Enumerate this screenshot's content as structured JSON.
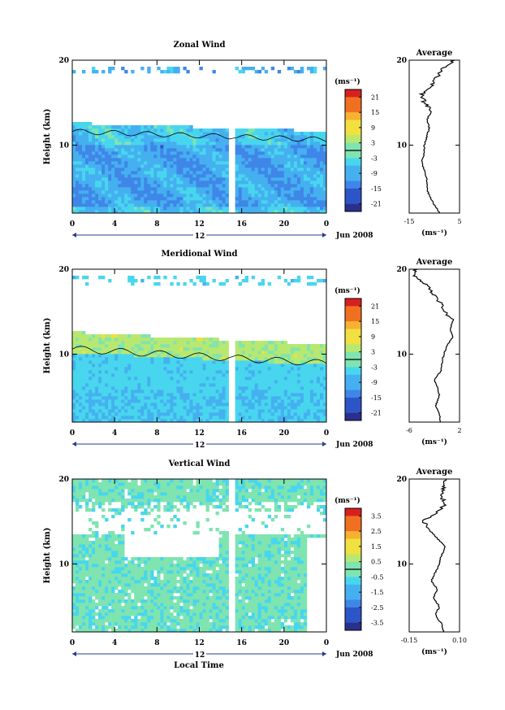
{
  "figure": {
    "xlabel": "Local Time",
    "date_label": "Jun 2008",
    "day_label": "12",
    "ylabel": "Height (km)",
    "average_title": "Average",
    "unit": "(ms⁻¹)"
  },
  "chart_data": [
    {
      "type": "heatmap",
      "title": "Zonal Wind",
      "xlabel": "Local Time",
      "ylabel": "Height (km)",
      "x_ticks": [
        "0",
        "4",
        "8",
        "12",
        "16",
        "20",
        "0"
      ],
      "y_ticks": [
        "10",
        "20"
      ],
      "xlim": [
        0,
        24
      ],
      "ylim": [
        2,
        20
      ],
      "data_gap_hours": [
        14.8,
        15.3
      ],
      "colorbar": {
        "label": "(ms⁻¹)",
        "ticks": [
          "21",
          "15",
          "9",
          "3",
          "-3",
          "-9",
          "-15",
          "-21"
        ],
        "range": [
          -24,
          24
        ]
      },
      "dominant_values": "mostly -3 to -12 below 13 km, weak near 19 km",
      "profile": {
        "title": "Average",
        "xlabel": "(ms⁻¹)",
        "x_ticks": [
          "-15",
          "5"
        ],
        "xlim": [
          -15,
          5
        ],
        "y_ticks": [
          "10",
          "20"
        ],
        "heights_km": [
          2,
          3,
          4,
          5,
          6,
          7,
          8,
          9,
          10,
          11,
          12,
          13,
          14,
          15,
          16,
          17,
          18,
          19,
          20
        ],
        "values": [
          -3,
          -5,
          -7,
          -8,
          -8,
          -9,
          -10,
          -9,
          -9,
          -8,
          -7,
          -8,
          -6,
          -9,
          -10,
          -6,
          -4,
          -2,
          3
        ]
      }
    },
    {
      "type": "heatmap",
      "title": "Meridional Wind",
      "xlabel": "Local Time",
      "ylabel": "Height (km)",
      "x_ticks": [
        "0",
        "4",
        "8",
        "12",
        "16",
        "20",
        "0"
      ],
      "y_ticks": [
        "10",
        "20"
      ],
      "xlim": [
        0,
        24
      ],
      "ylim": [
        2,
        20
      ],
      "data_gap_hours": [
        14.8,
        15.3
      ],
      "colorbar": {
        "label": "(ms⁻¹)",
        "ticks": [
          "21",
          "15",
          "9",
          "3",
          "-3",
          "-9",
          "-15",
          "-21"
        ],
        "range": [
          -24,
          24
        ]
      },
      "dominant_values": "mostly -3 to -6, near 0 to 6 around 10-13 km",
      "profile": {
        "title": "Average",
        "xlabel": "(ms⁻¹)",
        "x_ticks": [
          "-6",
          "2"
        ],
        "xlim": [
          -6,
          2
        ],
        "y_ticks": [
          "10",
          "20"
        ],
        "heights_km": [
          2,
          3,
          4,
          5,
          6,
          7,
          8,
          9,
          10,
          11,
          12,
          13,
          14,
          15,
          16,
          17,
          18,
          19,
          20
        ],
        "values": [
          -1,
          -1.2,
          -1.8,
          -1.2,
          -1.4,
          -2,
          -1,
          -0.8,
          -0.5,
          0,
          1,
          0.5,
          1,
          -0.5,
          -1,
          -2,
          -3,
          -5,
          -5
        ]
      }
    },
    {
      "type": "heatmap",
      "title": "Vertical Wind",
      "xlabel": "Local Time",
      "ylabel": "Height (km)",
      "x_ticks": [
        "0",
        "4",
        "8",
        "12",
        "16",
        "20",
        "0"
      ],
      "y_ticks": [
        "10",
        "20"
      ],
      "xlim": [
        0,
        24
      ],
      "ylim": [
        2,
        20
      ],
      "data_gap_hours": [
        14.8,
        15.3
      ],
      "colorbar": {
        "label": "(ms⁻¹)",
        "ticks": [
          "3.5",
          "2.5",
          "1.5",
          "0.5",
          "-0.5",
          "-1.5",
          "-2.5",
          "-3.5"
        ],
        "range": [
          -4,
          4
        ]
      },
      "dominant_values": "mostly -0.5 to 0.5",
      "profile": {
        "title": "Average",
        "xlabel": "(ms⁻¹)",
        "x_ticks": [
          "-0.15",
          "0.10"
        ],
        "xlim": [
          -0.15,
          0.1
        ],
        "y_ticks": [
          "10",
          "20"
        ],
        "heights_km": [
          2,
          3,
          4,
          5,
          6,
          7,
          8,
          9,
          10,
          11,
          12,
          13,
          14,
          15,
          16,
          17,
          18,
          19,
          20
        ],
        "values": [
          0.02,
          0.01,
          -0.02,
          0.0,
          -0.03,
          -0.01,
          -0.04,
          -0.02,
          0.0,
          0.01,
          0.03,
          -0.01,
          -0.05,
          -0.08,
          -0.02,
          0.03,
          0.01,
          0.02,
          0.03
        ]
      }
    }
  ]
}
